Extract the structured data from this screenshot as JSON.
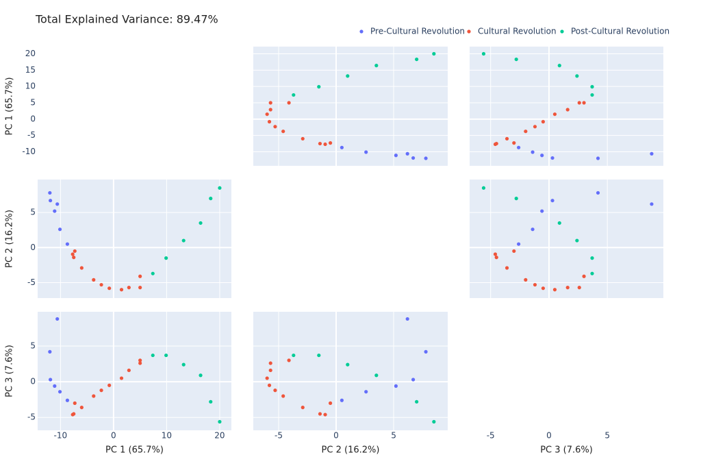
{
  "chart_data": {
    "type": "scatter_matrix",
    "title": "Total Explained Variance: 89.47%",
    "dimensions": [
      {
        "label": "PC 1 (65.7%)",
        "lim": [
          -14.3,
          22.2
        ],
        "xticks": [
          -10,
          0,
          10,
          20
        ],
        "yticks": [
          -10,
          -5,
          0,
          5,
          10,
          15,
          20
        ]
      },
      {
        "label": "PC 2 (16.2%)",
        "lim": [
          -7.2,
          9.7
        ],
        "xticks": [
          -5,
          0,
          5
        ],
        "yticks": [
          -5,
          0,
          5
        ]
      },
      {
        "label": "PC 3 (7.6%)",
        "lim": [
          -6.8,
          9.8
        ],
        "xticks": [
          -5,
          0,
          5
        ],
        "yticks": [
          -5,
          0,
          5
        ]
      }
    ],
    "series": [
      {
        "name": "Pre-Cultural Revolution",
        "color": "#636efa",
        "values": [
          [
            -8.7,
            -10.1,
            -11.1,
            -10.6,
            -11.9,
            -12.0
          ],
          [
            0.5,
            2.6,
            5.2,
            6.2,
            6.7,
            7.8
          ],
          [
            -2.6,
            -1.4,
            -0.6,
            8.8,
            0.3,
            4.2
          ]
        ]
      },
      {
        "name": "Cultural Revolution",
        "color": "#ef553b",
        "values": [
          [
            -7.7,
            -7.5,
            -7.3,
            -6.0,
            -3.75,
            -2.3,
            -0.8,
            1.5,
            2.9,
            5.0,
            5.0
          ],
          [
            -0.95,
            -1.4,
            -0.5,
            -2.9,
            -4.6,
            -5.3,
            -5.8,
            -6.0,
            -5.7,
            -5.7,
            -4.1
          ],
          [
            -4.6,
            -4.5,
            -3.0,
            -3.6,
            -2.0,
            -1.2,
            -0.5,
            0.5,
            1.6,
            2.6,
            3.0
          ]
        ]
      },
      {
        "name": "Post-Cultural Revolution",
        "color": "#00cc96",
        "values": [
          [
            7.4,
            9.9,
            13.2,
            16.4,
            18.3,
            20.0
          ],
          [
            -3.7,
            -1.5,
            1.0,
            3.5,
            7.0,
            8.5
          ],
          [
            3.7,
            3.7,
            2.4,
            0.9,
            -2.8,
            -5.6
          ]
        ]
      }
    ]
  }
}
